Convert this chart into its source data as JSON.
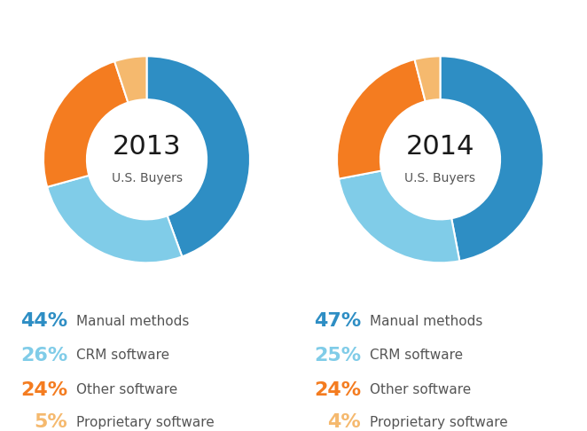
{
  "charts": [
    {
      "year": "2013",
      "subtitle": "U.S. Buyers",
      "values": [
        44,
        26,
        24,
        5
      ]
    },
    {
      "year": "2014",
      "subtitle": "U.S. Buyers",
      "values": [
        47,
        25,
        24,
        4
      ]
    }
  ],
  "labels": [
    "Manual methods",
    "CRM software",
    "Other software",
    "Proprietary software"
  ],
  "colors": [
    "#2e8ec4",
    "#80cce8",
    "#f47c20",
    "#f5b96e"
  ],
  "background_color": "#ffffff",
  "year_fontsize": 22,
  "subtitle_fontsize": 10,
  "pct_fontsize": 16,
  "label_fontsize": 11,
  "pct_colors": [
    "#2e8ec4",
    "#80cce8",
    "#f47c20",
    "#f5b96e"
  ],
  "label_color": "#555555",
  "donut_width": 0.42
}
